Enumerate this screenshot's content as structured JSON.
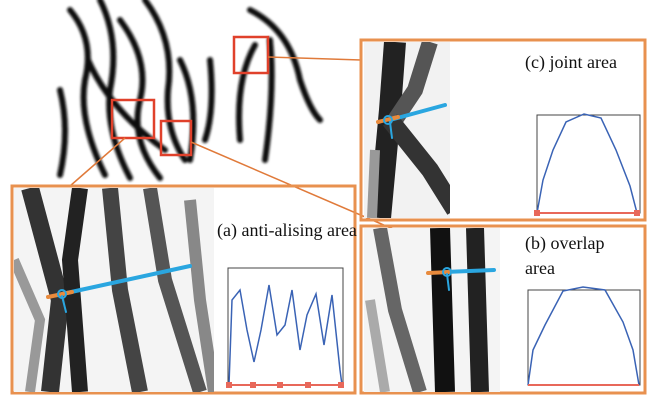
{
  "panels": [
    {
      "label": "(c) joint area"
    },
    {
      "label": "(a) anti-alising area"
    },
    {
      "label": "(b) overlap area"
    }
  ]
}
